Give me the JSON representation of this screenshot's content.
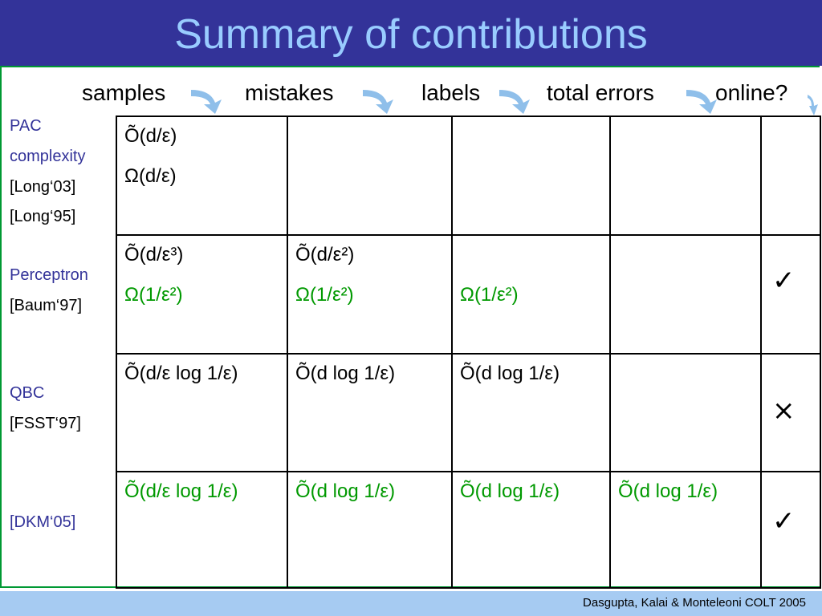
{
  "header": {
    "title": "Summary of contributions"
  },
  "columns": [
    "samples",
    "mistakes",
    "labels",
    "total errors",
    "online?"
  ],
  "rows": [
    {
      "labels": [
        {
          "text": "PAC",
          "color": "#333399"
        },
        {
          "text": "complexity",
          "color": "#333399"
        },
        {
          "text": "[Long‘03]",
          "color": "#000000"
        },
        {
          "text": "[Long‘95]",
          "color": "#000000"
        }
      ],
      "cells": [
        [
          {
            "text": "Õ(d/ε)",
            "color": "#000000"
          },
          {
            "text": "Ω(d/ε)",
            "color": "#000000"
          }
        ],
        [],
        [],
        [],
        []
      ],
      "online": null
    },
    {
      "labels": [
        {
          "text": "Perceptron",
          "color": "#333399"
        },
        {
          "text": "[Baum‘97]",
          "color": "#000000"
        }
      ],
      "cells": [
        [
          {
            "text": "Õ(d/ε³)",
            "color": "#000000"
          },
          {
            "text": "Ω(1/ε²)",
            "color": "#009900"
          }
        ],
        [
          {
            "text": "Õ(d/ε²)",
            "color": "#000000"
          },
          {
            "text": "Ω(1/ε²)",
            "color": "#009900"
          }
        ],
        [
          null,
          {
            "text": "Ω(1/ε²)",
            "color": "#009900"
          }
        ],
        []
      ],
      "online": "✓"
    },
    {
      "labels": [
        {
          "text": "QBC",
          "color": "#333399"
        },
        {
          "text": "[FSST‘97]",
          "color": "#000000"
        }
      ],
      "cells": [
        [
          {
            "text": "Õ(d/ε log 1/ε)",
            "color": "#000000"
          }
        ],
        [
          {
            "text": "Õ(d log 1/ε)",
            "color": "#000000"
          }
        ],
        [
          {
            "text": "Õ(d log 1/ε)",
            "color": "#000000"
          }
        ],
        []
      ],
      "online": "×"
    },
    {
      "labels": [
        {
          "text": "[DKM‘05]",
          "color": "#333399"
        }
      ],
      "cells": [
        [
          {
            "text": "Õ(d/ε log 1/ε)",
            "color": "#009900"
          }
        ],
        [
          {
            "text": "Õ(d log 1/ε)",
            "color": "#009900"
          }
        ],
        [
          {
            "text": "Õ(d log 1/ε)",
            "color": "#009900"
          }
        ],
        [
          {
            "text": "Õ(d log 1/ε)",
            "color": "#009900"
          }
        ]
      ],
      "online": "✓"
    }
  ],
  "footer": "Dasgupta, Kalai & Monteleoni  COLT 2005"
}
